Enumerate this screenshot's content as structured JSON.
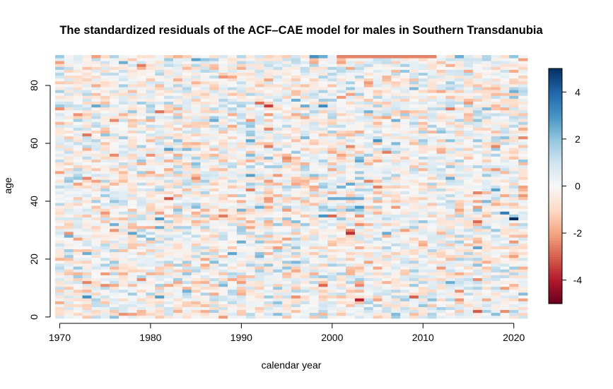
{
  "chart_data": {
    "type": "heatmap",
    "title": "The standardized residuals of the ACF–CAE model for males in Southern Transdanubia",
    "xlabel": "calendar year",
    "ylabel": "age",
    "x_range": [
      1970,
      2021
    ],
    "y_range": [
      0,
      90
    ],
    "xlim": [
      1969.5,
      2021.5
    ],
    "ylim": [
      -0.5,
      90.5
    ],
    "x_ticks": [
      1970,
      1980,
      1990,
      2000,
      2010,
      2020
    ],
    "y_ticks": [
      0,
      20,
      40,
      60,
      80
    ],
    "colorbar": {
      "range": [
        -5,
        5
      ],
      "ticks": [
        -4,
        -2,
        0,
        2,
        4
      ],
      "palette": [
        "#67001f",
        "#b2182b",
        "#d6604d",
        "#f4a582",
        "#fddbc7",
        "#f7f7f7",
        "#d1e5f0",
        "#92c5de",
        "#4393c3",
        "#2166ac",
        "#053061"
      ]
    },
    "grid": false,
    "residuals_note_values": "cell values are standardized residuals on [-5, 5]; notable extremes visible: age 34 year 2020 ≈ 5.0; age 36 year 2019 ≈ 3.5; age 41 years 2000–2003 ≈ 2.5; age 90 year 1998 ≈ 3.0; age 90 years 2001–2011 ≈ -2.5; age 73 year 1993 ≈ -3.5"
  }
}
